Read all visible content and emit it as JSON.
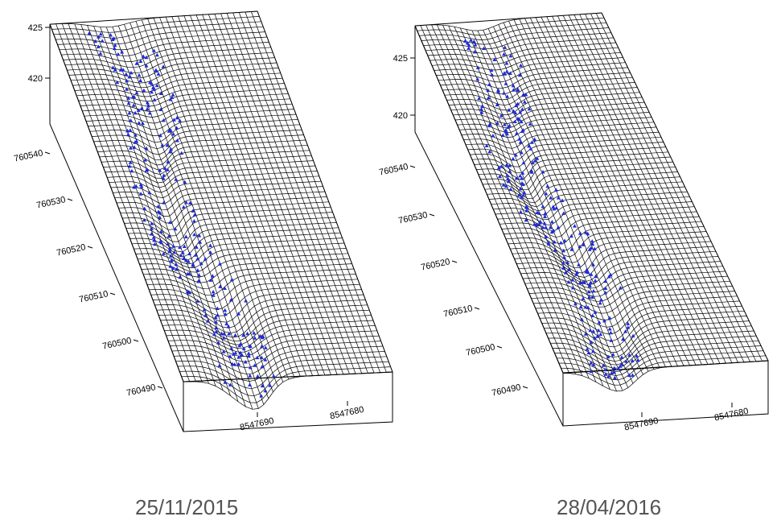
{
  "panels": [
    {
      "date": "25/11/2015",
      "z_ticks": [
        "425",
        "420"
      ],
      "y_ticks": [
        "760540",
        "760530",
        "760520",
        "760510",
        "760500",
        "760490"
      ],
      "x_ticks": [
        "8547690",
        "8547680"
      ]
    },
    {
      "date": "28/04/2016",
      "z_ticks": [
        "425",
        "420"
      ],
      "y_ticks": [
        "760540",
        "760530",
        "760520",
        "760510",
        "760500",
        "760490"
      ],
      "x_ticks": [
        "8547690",
        "8547680"
      ]
    }
  ],
  "colors": {
    "mesh": "#000000",
    "points": "#1f2bd6",
    "caption": "#555555"
  }
}
